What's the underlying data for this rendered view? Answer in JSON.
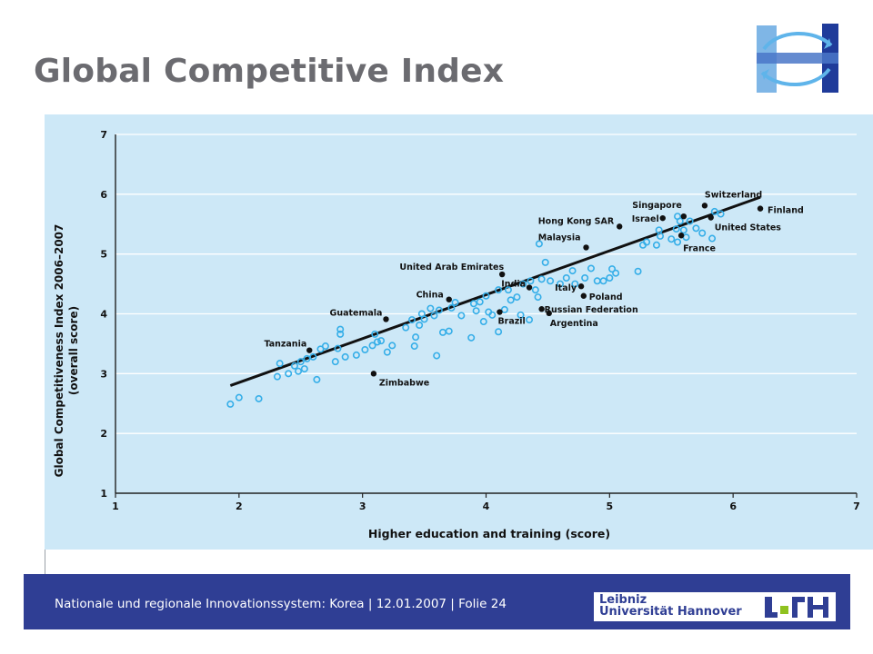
{
  "slide": {
    "title": "Global Competitive Index"
  },
  "footer": {
    "text": "Nationale und regionale Innovationssystem: Korea | 12.01.2007 | Folie 24",
    "logo_line1": "Leibniz",
    "logo_line2": "Universität Hannover"
  },
  "colors": {
    "footer_bg": "#2f3e94",
    "chart_bg": "#cde8f7",
    "open_point": "#35aee8",
    "trend_line": "#111111",
    "title_text": "#6b6b70"
  },
  "icons": {
    "top_logo": "institute-logo-icon",
    "footer_logo": "leibniz-university-hannover-logo"
  },
  "chart_data": {
    "type": "scatter",
    "xlabel": "Higher education and training (score)",
    "ylabel": "Global Competitiveness Index 2006–2007",
    "ylabel_sub": "(overall score)",
    "xlim": [
      1,
      7
    ],
    "ylim": [
      1,
      7
    ],
    "x_ticks": [
      "1",
      "2",
      "3",
      "4",
      "5",
      "6",
      "7"
    ],
    "y_ticks": [
      "1",
      "2",
      "3",
      "4",
      "5",
      "6",
      "7"
    ],
    "grid": "horizontal",
    "trend_line": [
      [
        1.93,
        2.8
      ],
      [
        6.22,
        5.95
      ]
    ],
    "labeled_points": [
      {
        "label": "Switzerland",
        "x": 5.77,
        "y": 5.81
      },
      {
        "label": "Finland",
        "x": 6.22,
        "y": 5.76
      },
      {
        "label": "Singapore",
        "x": 5.6,
        "y": 5.63
      },
      {
        "label": "Israel",
        "x": 5.43,
        "y": 5.6
      },
      {
        "label": "United States",
        "x": 5.82,
        "y": 5.61
      },
      {
        "label": "Hong Kong SAR",
        "x": 5.08,
        "y": 5.46
      },
      {
        "label": "France",
        "x": 5.58,
        "y": 5.31
      },
      {
        "label": "Malaysia",
        "x": 4.81,
        "y": 5.11
      },
      {
        "label": "United Arab Emirates",
        "x": 4.13,
        "y": 4.66
      },
      {
        "label": "India",
        "x": 4.35,
        "y": 4.44
      },
      {
        "label": "Italy",
        "x": 4.77,
        "y": 4.46
      },
      {
        "label": "Poland",
        "x": 4.79,
        "y": 4.3
      },
      {
        "label": "China",
        "x": 3.7,
        "y": 4.24
      },
      {
        "label": "Russian Federation",
        "x": 4.45,
        "y": 4.08
      },
      {
        "label": "Brazil",
        "x": 4.11,
        "y": 4.03
      },
      {
        "label": "Argentina",
        "x": 4.51,
        "y": 4.01
      },
      {
        "label": "Guatemala",
        "x": 3.19,
        "y": 3.91
      },
      {
        "label": "Tanzania",
        "x": 2.57,
        "y": 3.39
      },
      {
        "label": "Zimbabwe",
        "x": 3.09,
        "y": 3.0
      }
    ],
    "unlabeled_points": [
      [
        1.93,
        2.49
      ],
      [
        2.0,
        2.6
      ],
      [
        2.16,
        2.58
      ],
      [
        2.31,
        2.95
      ],
      [
        2.33,
        3.17
      ],
      [
        2.4,
        3.0
      ],
      [
        2.45,
        3.13
      ],
      [
        2.48,
        3.04
      ],
      [
        2.5,
        3.2
      ],
      [
        2.53,
        3.08
      ],
      [
        2.55,
        3.25
      ],
      [
        2.6,
        3.28
      ],
      [
        2.63,
        2.9
      ],
      [
        2.66,
        3.41
      ],
      [
        2.7,
        3.46
      ],
      [
        2.78,
        3.2
      ],
      [
        2.8,
        3.42
      ],
      [
        2.82,
        3.66
      ],
      [
        2.82,
        3.74
      ],
      [
        2.86,
        3.28
      ],
      [
        2.95,
        3.31
      ],
      [
        3.02,
        3.4
      ],
      [
        3.08,
        3.47
      ],
      [
        3.1,
        3.66
      ],
      [
        3.12,
        3.53
      ],
      [
        3.15,
        3.55
      ],
      [
        3.2,
        3.36
      ],
      [
        3.24,
        3.47
      ],
      [
        3.35,
        3.77
      ],
      [
        3.4,
        3.9
      ],
      [
        3.42,
        3.46
      ],
      [
        3.43,
        3.61
      ],
      [
        3.46,
        3.81
      ],
      [
        3.48,
        4.0
      ],
      [
        3.5,
        3.91
      ],
      [
        3.55,
        4.09
      ],
      [
        3.58,
        3.97
      ],
      [
        3.6,
        3.3
      ],
      [
        3.62,
        4.06
      ],
      [
        3.65,
        3.69
      ],
      [
        3.7,
        3.71
      ],
      [
        3.72,
        4.1
      ],
      [
        3.75,
        4.19
      ],
      [
        3.8,
        3.97
      ],
      [
        3.88,
        3.6
      ],
      [
        3.9,
        4.17
      ],
      [
        3.92,
        4.05
      ],
      [
        3.95,
        4.2
      ],
      [
        3.98,
        3.87
      ],
      [
        4.0,
        4.3
      ],
      [
        4.02,
        4.03
      ],
      [
        4.05,
        3.98
      ],
      [
        4.1,
        3.7
      ],
      [
        4.1,
        4.4
      ],
      [
        4.15,
        4.07
      ],
      [
        4.18,
        4.4
      ],
      [
        4.2,
        4.23
      ],
      [
        4.25,
        4.28
      ],
      [
        4.28,
        3.98
      ],
      [
        4.3,
        4.5
      ],
      [
        4.35,
        3.9
      ],
      [
        4.36,
        4.55
      ],
      [
        4.4,
        4.4
      ],
      [
        4.42,
        4.28
      ],
      [
        4.43,
        5.17
      ],
      [
        4.45,
        4.58
      ],
      [
        4.48,
        4.86
      ],
      [
        4.52,
        4.55
      ],
      [
        4.6,
        4.5
      ],
      [
        4.65,
        4.6
      ],
      [
        4.7,
        4.72
      ],
      [
        4.72,
        4.5
      ],
      [
        4.8,
        4.6
      ],
      [
        4.85,
        4.76
      ],
      [
        4.9,
        4.55
      ],
      [
        4.95,
        4.55
      ],
      [
        5.0,
        4.6
      ],
      [
        5.02,
        4.75
      ],
      [
        5.05,
        4.68
      ],
      [
        5.23,
        4.71
      ],
      [
        5.27,
        5.15
      ],
      [
        5.3,
        5.2
      ],
      [
        5.38,
        5.15
      ],
      [
        5.4,
        5.4
      ],
      [
        5.41,
        5.3
      ],
      [
        5.5,
        5.25
      ],
      [
        5.54,
        5.42
      ],
      [
        5.55,
        5.2
      ],
      [
        5.57,
        5.55
      ],
      [
        5.6,
        5.4
      ],
      [
        5.62,
        5.28
      ],
      [
        5.65,
        5.55
      ],
      [
        5.7,
        5.43
      ],
      [
        5.75,
        5.35
      ],
      [
        5.83,
        5.26
      ],
      [
        5.85,
        5.71
      ],
      [
        5.9,
        5.67
      ],
      [
        5.55,
        5.63
      ]
    ]
  }
}
